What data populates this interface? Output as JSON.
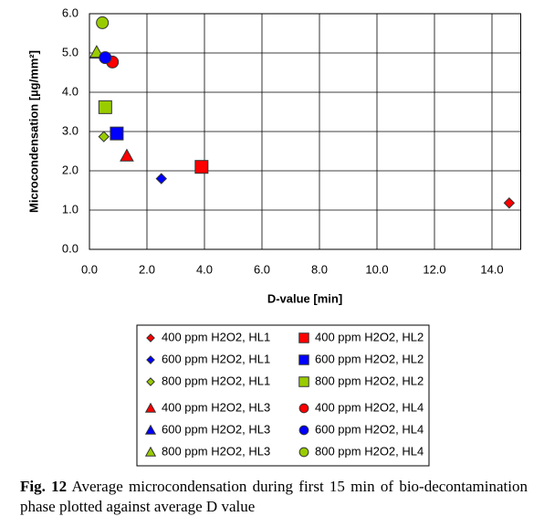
{
  "chart_data": {
    "type": "scatter",
    "xlabel": "D-value [min]",
    "ylabel": "Microcondensation [µg/mm²]",
    "xlim": [
      0,
      15
    ],
    "xticks": [
      {
        "value": 0,
        "label": "0.0"
      },
      {
        "value": 2,
        "label": "2.0"
      },
      {
        "value": 4,
        "label": "4.0"
      },
      {
        "value": 6,
        "label": "6.0"
      },
      {
        "value": 8,
        "label": "8.0"
      },
      {
        "value": 10,
        "label": "10.0"
      },
      {
        "value": 12,
        "label": "12.0"
      },
      {
        "value": 14,
        "label": "14.0"
      }
    ],
    "ylim": [
      0,
      6
    ],
    "yticks": [
      {
        "value": 0,
        "label": "0.0"
      },
      {
        "value": 1,
        "label": "1.0"
      },
      {
        "value": 2,
        "label": "2.0"
      },
      {
        "value": 3,
        "label": "3.0"
      },
      {
        "value": 4,
        "label": "4.0"
      },
      {
        "value": 5,
        "label": "5.0"
      },
      {
        "value": 6,
        "label": "6.0"
      }
    ],
    "grid": true,
    "legend": "bottom",
    "series": [
      {
        "name": "400 ppm H2O2, HL1",
        "color": "#ff0000",
        "marker": "diamond",
        "x": [
          14.6
        ],
        "values": [
          1.18
        ]
      },
      {
        "name": "600 ppm H2O2, HL1",
        "color": "#0000ff",
        "marker": "diamond",
        "x": [
          2.5
        ],
        "values": [
          1.8
        ]
      },
      {
        "name": "800 ppm H2O2, HL1",
        "color": "#99cc00",
        "marker": "diamond",
        "x": [
          0.5
        ],
        "values": [
          2.87
        ]
      },
      {
        "name": "400 ppm H2O2, HL2",
        "color": "#ff0000",
        "marker": "square",
        "x": [
          3.9
        ],
        "values": [
          2.1
        ]
      },
      {
        "name": "600 ppm H2O2, HL2",
        "color": "#0000ff",
        "marker": "square",
        "x": [
          0.95
        ],
        "values": [
          2.95
        ]
      },
      {
        "name": "800 ppm H2O2, HL2",
        "color": "#99cc00",
        "marker": "square",
        "x": [
          0.55
        ],
        "values": [
          3.62
        ]
      },
      {
        "name": "400 ppm H2O2, HL3",
        "color": "#ff0000",
        "marker": "triangle",
        "x": [
          1.3
        ],
        "values": [
          2.38
        ]
      },
      {
        "name": "600 ppm H2O2, HL3",
        "color": "#0000ff",
        "marker": "triangle",
        "x": [
          0.25
        ],
        "values": [
          5.0
        ]
      },
      {
        "name": "800 ppm H2O2, HL3",
        "color": "#99cc00",
        "marker": "triangle",
        "x": [
          0.25
        ],
        "values": [
          5.02
        ]
      },
      {
        "name": "400 ppm H2O2, HL4",
        "color": "#ff0000",
        "marker": "circle",
        "x": [
          0.8
        ],
        "values": [
          4.77
        ]
      },
      {
        "name": "600 ppm H2O2, HL4",
        "color": "#0000ff",
        "marker": "circle",
        "x": [
          0.55
        ],
        "values": [
          4.88
        ]
      },
      {
        "name": "800 ppm H2O2, HL4",
        "color": "#99cc00",
        "marker": "circle",
        "x": [
          0.45
        ],
        "values": [
          5.77
        ]
      }
    ]
  },
  "caption": {
    "label": "Fig. 12",
    "text": "Average microcondensation during first 15 min of bio-decontamination phase plotted against average D value"
  }
}
